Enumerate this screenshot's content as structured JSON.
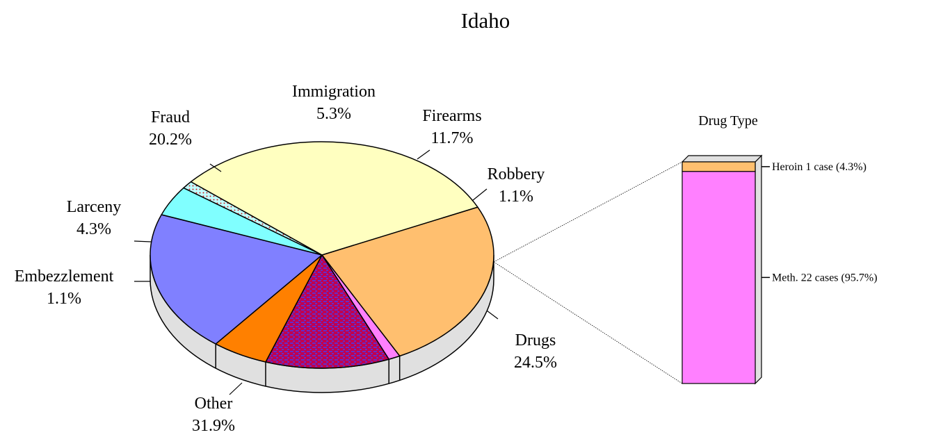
{
  "chart_data": [
    {
      "type": "pie",
      "title": "Idaho",
      "slices": [
        {
          "label": "Drugs",
          "pct_label": "24.5%",
          "value": 24.5,
          "color": "#ffbf6f"
        },
        {
          "label": "Robbery",
          "pct_label": "1.1%",
          "value": 1.1,
          "color": "#ff80ff"
        },
        {
          "label": "Firearms",
          "pct_label": "11.7%",
          "value": 11.7,
          "color": "#c0004f",
          "pattern": "blue-dashes"
        },
        {
          "label": "Immigration",
          "pct_label": "5.3%",
          "value": 5.3,
          "color": "#ff8000"
        },
        {
          "label": "Fraud",
          "pct_label": "20.2%",
          "value": 20.2,
          "color": "#8080ff"
        },
        {
          "label": "Larceny",
          "pct_label": "4.3%",
          "value": 4.3,
          "color": "#80ffff"
        },
        {
          "label": "Embezzlement",
          "pct_label": "1.1%",
          "value": 1.1,
          "color": "#c0ffff",
          "pattern": "red-dots"
        },
        {
          "label": "Other",
          "pct_label": "31.9%",
          "value": 31.9,
          "color": "#ffffc0"
        }
      ],
      "exploded_slice": "Drugs"
    },
    {
      "type": "bar",
      "stacked": true,
      "title": "Drug Type",
      "segments": [
        {
          "label": "Meth. 22 cases (95.7%)",
          "cases": 22,
          "pct": 95.7,
          "color": "#ff80ff"
        },
        {
          "label": "Heroin 1 case (4.3%)",
          "cases": 1,
          "pct": 4.3,
          "color": "#ffbf6f"
        }
      ]
    }
  ]
}
